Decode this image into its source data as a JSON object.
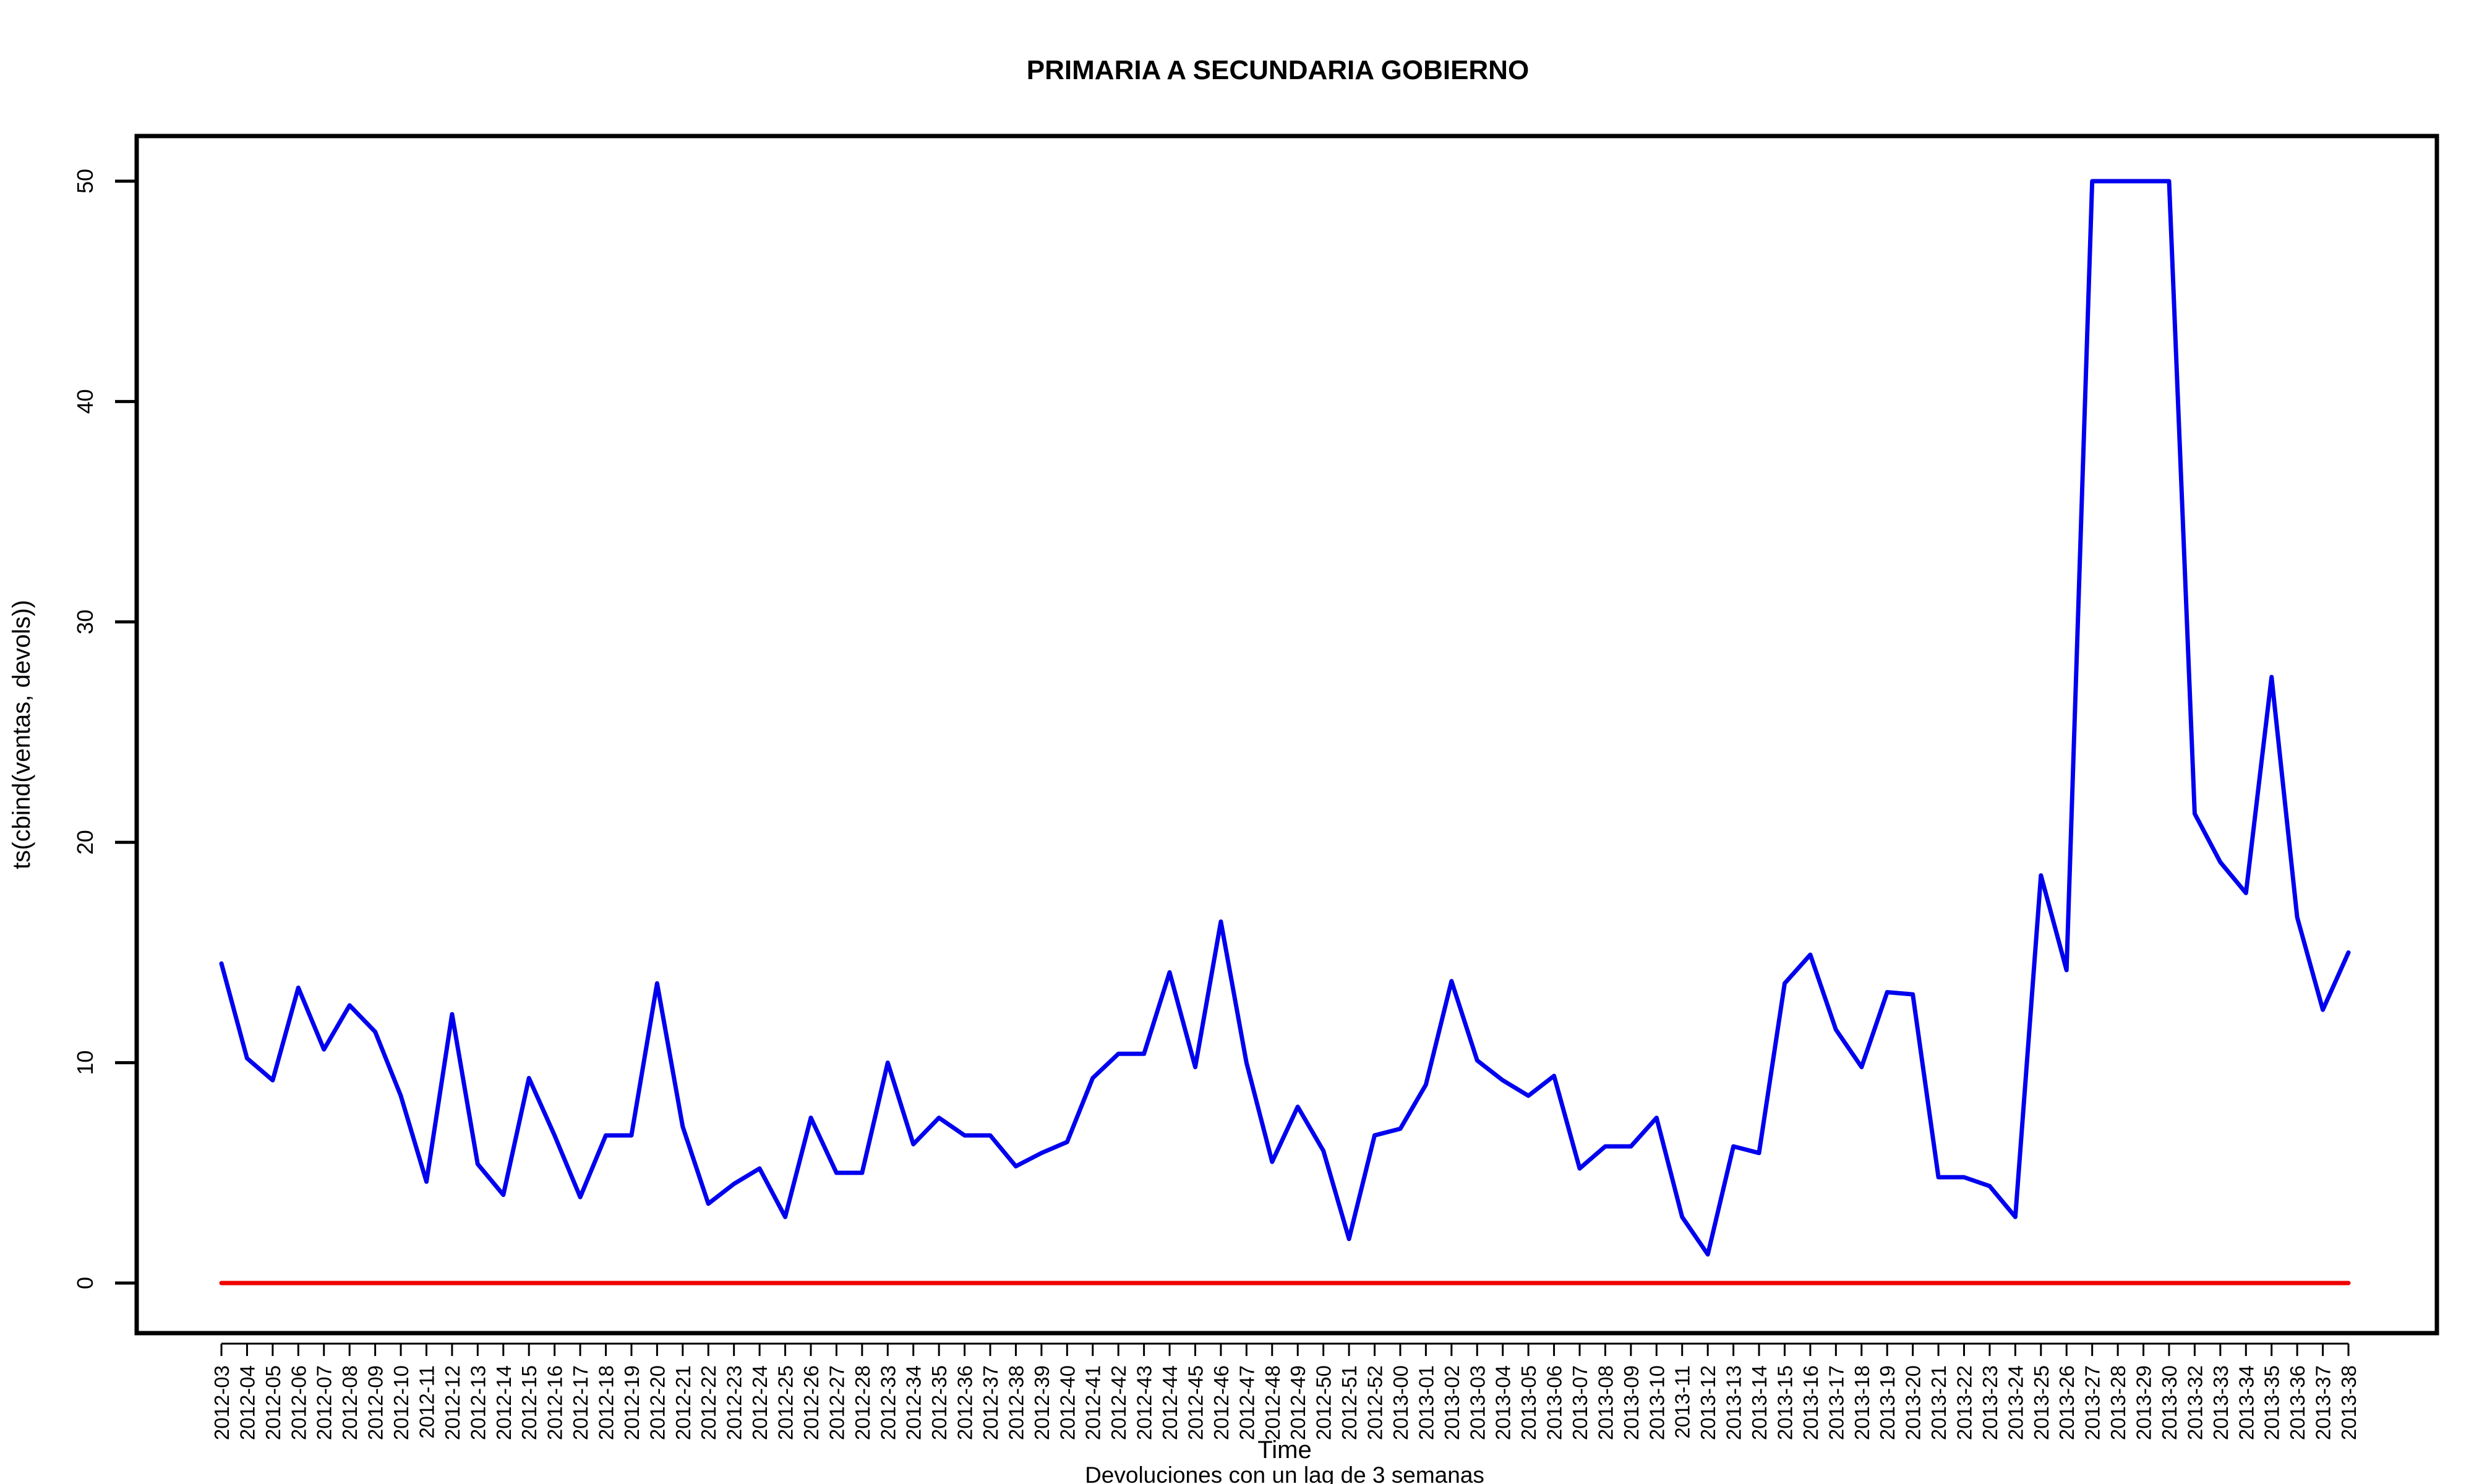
{
  "chart_data": {
    "type": "line",
    "title": "PRIMARIA A SECUNDARIA GOBIERNO",
    "xlabel": "Time",
    "sublabel": "Devoluciones con un lag de 3 semanas",
    "ylabel": "ts(cbind(ventas, devols))",
    "ylim": [
      -2,
      52
    ],
    "yticks": [
      "0",
      "10",
      "20",
      "30",
      "40",
      "50"
    ],
    "grid": false,
    "categories": [
      "2012-03",
      "2012-04",
      "2012-05",
      "2012-06",
      "2012-07",
      "2012-08",
      "2012-09",
      "2012-10",
      "2012-11",
      "2012-12",
      "2012-13",
      "2012-14",
      "2012-15",
      "2012-16",
      "2012-17",
      "2012-18",
      "2012-19",
      "2012-20",
      "2012-21",
      "2012-22",
      "2012-23",
      "2012-24",
      "2012-25",
      "2012-26",
      "2012-27",
      "2012-28",
      "2012-33",
      "2012-34",
      "2012-35",
      "2012-36",
      "2012-37",
      "2012-38",
      "2012-39",
      "2012-40",
      "2012-41",
      "2012-42",
      "2012-43",
      "2012-44",
      "2012-45",
      "2012-46",
      "2012-47",
      "2012-48",
      "2012-49",
      "2012-50",
      "2012-51",
      "2012-52",
      "2013-00",
      "2013-01",
      "2013-02",
      "2013-03",
      "2013-04",
      "2013-05",
      "2013-06",
      "2013-07",
      "2013-08",
      "2013-09",
      "2013-10",
      "2013-11",
      "2013-12",
      "2013-13",
      "2013-14",
      "2013-15",
      "2013-16",
      "2013-17",
      "2013-18",
      "2013-19",
      "2013-20",
      "2013-21",
      "2013-22",
      "2013-23",
      "2013-24",
      "2013-25",
      "2013-26",
      "2013-27",
      "2013-28",
      "2013-29",
      "2013-30",
      "2013-32",
      "2013-33",
      "2013-34",
      "2013-35",
      "2013-36",
      "2013-37",
      "2013-38"
    ],
    "series": [
      {
        "color": "#0000ee",
        "values": [
          14.5,
          10.2,
          9.2,
          13.4,
          10.6,
          12.6,
          11.4,
          8.5,
          4.6,
          12.2,
          5.4,
          4.0,
          9.3,
          6.7,
          3.9,
          6.7,
          6.7,
          13.6,
          7.1,
          3.6,
          4.5,
          5.2,
          3.0,
          7.5,
          5.0,
          5.0,
          10.0,
          6.3,
          7.5,
          6.7,
          6.7,
          5.3,
          5.9,
          6.4,
          9.3,
          10.4,
          10.4,
          14.1,
          9.8,
          16.4,
          10.0,
          5.5,
          8.0,
          6.0,
          2.0,
          6.7,
          7.0,
          9.0,
          13.7,
          10.1,
          9.2,
          8.5,
          9.4,
          5.2,
          6.2,
          6.2,
          7.5,
          3.0,
          1.3,
          6.2,
          5.9,
          13.6,
          14.9,
          11.5,
          9.8,
          13.2,
          13.1,
          4.8,
          4.8,
          4.4,
          3.0,
          18.5,
          14.2,
          50.0,
          50.0,
          50.0,
          50.0,
          21.3,
          19.1,
          17.7,
          27.5,
          16.6,
          12.4,
          15.0
        ]
      },
      {
        "color": "#ee0000",
        "values": [
          0,
          0,
          0,
          0,
          0,
          0,
          0,
          0,
          0,
          0,
          0,
          0,
          0,
          0,
          0,
          0,
          0,
          0,
          0,
          0,
          0,
          0,
          0,
          0,
          0,
          0,
          0,
          0,
          0,
          0,
          0,
          0,
          0,
          0,
          0,
          0,
          0,
          0,
          0,
          0,
          0,
          0,
          0,
          0,
          0,
          0,
          0,
          0,
          0,
          0,
          0,
          0,
          0,
          0,
          0,
          0,
          0,
          0,
          0,
          0,
          0,
          0,
          0,
          0,
          0,
          0,
          0,
          0,
          0,
          0,
          0,
          0,
          0,
          0,
          0,
          0,
          0,
          0,
          0,
          0,
          0,
          0,
          0,
          0
        ]
      }
    ]
  }
}
